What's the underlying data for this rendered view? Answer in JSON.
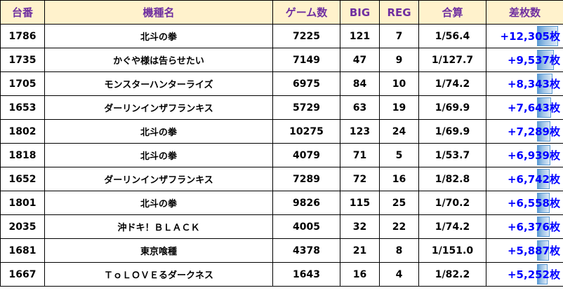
{
  "headers": [
    "台番",
    "機種名",
    "ゲーム数",
    "BIG",
    "REG",
    "合算",
    "差枚数"
  ],
  "rows": [
    {
      "machine_no": "1786",
      "name": "北斗の拳",
      "games": "7225",
      "big": "121",
      "reg": "7",
      "combined": "1/56.4",
      "diff": "+12,305枚",
      "diff_value": 12305
    },
    {
      "machine_no": "1735",
      "name": "かぐや様は告らせたい",
      "games": "7149",
      "big": "47",
      "reg": "9",
      "combined": "1/127.7",
      "diff": "+9,537枚",
      "diff_value": 9537
    },
    {
      "machine_no": "1705",
      "name": "モンスターハンターライズ",
      "games": "6975",
      "big": "84",
      "reg": "10",
      "combined": "1/74.2",
      "diff": "+8,343枚",
      "diff_value": 8343
    },
    {
      "machine_no": "1653",
      "name": "ダーリンインザフランキス",
      "games": "5729",
      "big": "63",
      "reg": "19",
      "combined": "1/69.9",
      "diff": "+7,643枚",
      "diff_value": 7643
    },
    {
      "machine_no": "1802",
      "name": "北斗の拳",
      "games": "10275",
      "big": "123",
      "reg": "24",
      "combined": "1/69.9",
      "diff": "+7,289枚",
      "diff_value": 7289
    },
    {
      "machine_no": "1818",
      "name": "北斗の拳",
      "games": "4079",
      "big": "71",
      "reg": "5",
      "combined": "1/53.7",
      "diff": "+6,939枚",
      "diff_value": 6939
    },
    {
      "machine_no": "1652",
      "name": "ダーリンインザフランキス",
      "games": "7289",
      "big": "72",
      "reg": "16",
      "combined": "1/82.8",
      "diff": "+6,742枚",
      "diff_value": 6742
    },
    {
      "machine_no": "1801",
      "name": "北斗の拳",
      "games": "9826",
      "big": "115",
      "reg": "25",
      "combined": "1/70.2",
      "diff": "+6,558枚",
      "diff_value": 6558
    },
    {
      "machine_no": "2035",
      "name": "沖ドキ！ＢＬＡＣＫ",
      "games": "4005",
      "big": "32",
      "reg": "22",
      "combined": "1/74.2",
      "diff": "+6,376枚",
      "diff_value": 6376
    },
    {
      "machine_no": "1681",
      "name": "東京喰種",
      "games": "4378",
      "big": "21",
      "reg": "8",
      "combined": "1/151.0",
      "diff": "+5,887枚",
      "diff_value": 5887
    },
    {
      "machine_no": "1667",
      "name": "ＴｏＬＯＶＥるダークネス",
      "games": "1643",
      "big": "16",
      "reg": "4",
      "combined": "1/82.2",
      "diff": "+5,252枚",
      "diff_value": 5252
    }
  ],
  "colors": {
    "header_bg": "#fff2cc",
    "header_text": "#7030a0",
    "diff_text": "#0000ff",
    "bar": "#5b9bd5"
  }
}
